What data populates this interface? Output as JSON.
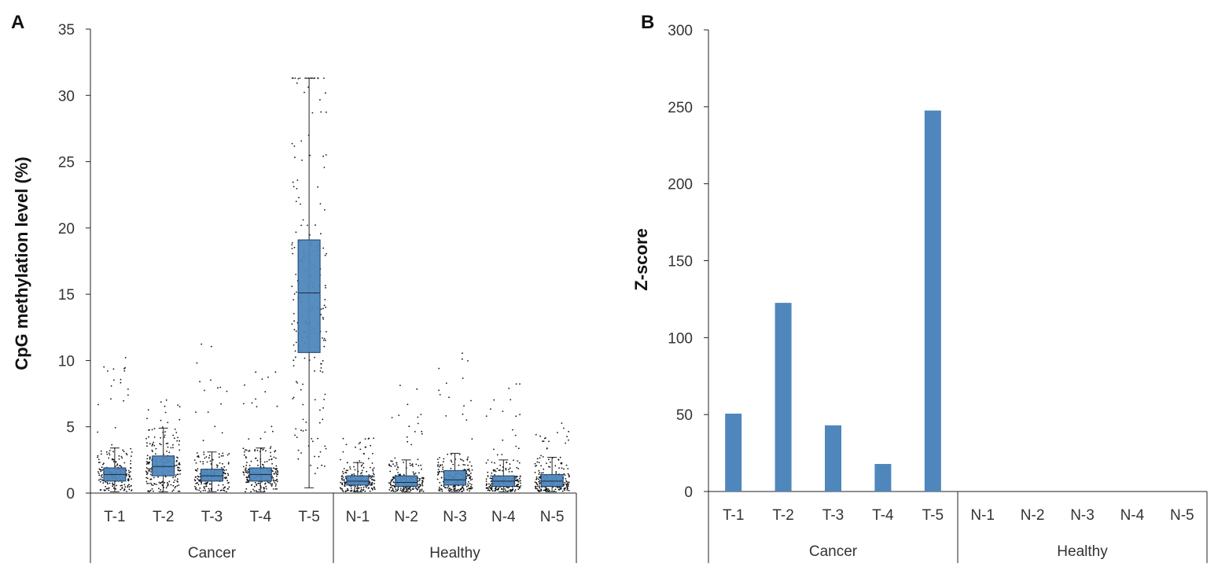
{
  "colors": {
    "bar": "#4f87bd",
    "box": "#4f87bd",
    "axis": "#222222",
    "point": "#111111"
  },
  "chart_data": [
    {
      "panel": "A",
      "type": "box",
      "title": "",
      "xlabel": "",
      "ylabel": "CpG methylation level (%)",
      "ylim": [
        0,
        35
      ],
      "yticks": [
        "0",
        "5",
        "10",
        "15",
        "20",
        "25",
        "30",
        "35"
      ],
      "categories": [
        "T-1",
        "T-2",
        "T-3",
        "T-4",
        "T-5",
        "N-1",
        "N-2",
        "N-3",
        "N-4",
        "N-5"
      ],
      "groups": [
        {
          "name": "Cancer",
          "categories": [
            "T-1",
            "T-2",
            "T-3",
            "T-4",
            "T-5"
          ]
        },
        {
          "name": "Healthy",
          "categories": [
            "N-1",
            "N-2",
            "N-3",
            "N-4",
            "N-5"
          ]
        }
      ],
      "boxes": [
        {
          "name": "T-1",
          "min": 0.1,
          "q1": 0.9,
          "median": 1.4,
          "q3": 1.9,
          "max": 3.4,
          "outlier_max": 11.0
        },
        {
          "name": "T-2",
          "min": 0.1,
          "q1": 1.3,
          "median": 2.0,
          "q3": 2.8,
          "max": 4.9,
          "outlier_max": 7.1
        },
        {
          "name": "T-3",
          "min": 0.1,
          "q1": 0.9,
          "median": 1.3,
          "q3": 1.8,
          "max": 3.1,
          "outlier_max": 11.7
        },
        {
          "name": "T-4",
          "min": 0.1,
          "q1": 0.9,
          "median": 1.4,
          "q3": 1.9,
          "max": 3.4,
          "outlier_max": 9.7
        },
        {
          "name": "T-5",
          "min": 0.4,
          "q1": 10.6,
          "median": 15.1,
          "q3": 19.1,
          "max": 31.3,
          "outlier_max": 31.3
        },
        {
          "name": "N-1",
          "min": 0.1,
          "q1": 0.6,
          "median": 0.9,
          "q3": 1.3,
          "max": 2.3,
          "outlier_max": 4.5
        },
        {
          "name": "N-2",
          "min": 0.1,
          "q1": 0.5,
          "median": 0.8,
          "q3": 1.3,
          "max": 2.5,
          "outlier_max": 8.2
        },
        {
          "name": "N-3",
          "min": 0.1,
          "q1": 0.6,
          "median": 1.0,
          "q3": 1.7,
          "max": 3.0,
          "outlier_max": 10.9
        },
        {
          "name": "N-4",
          "min": 0.1,
          "q1": 0.5,
          "median": 0.9,
          "q3": 1.3,
          "max": 2.5,
          "outlier_max": 10.0
        },
        {
          "name": "N-5",
          "min": 0.1,
          "q1": 0.5,
          "median": 0.9,
          "q3": 1.4,
          "max": 2.7,
          "outlier_max": 5.4
        }
      ]
    },
    {
      "panel": "B",
      "type": "bar",
      "title": "",
      "xlabel": "",
      "ylabel": "Z-score",
      "ylim": [
        0,
        300
      ],
      "yticks": [
        "0",
        "50",
        "100",
        "150",
        "200",
        "250",
        "300"
      ],
      "categories": [
        "T-1",
        "T-2",
        "T-3",
        "T-4",
        "T-5",
        "N-1",
        "N-2",
        "N-3",
        "N-4",
        "N-5"
      ],
      "values": [
        50.6,
        122.6,
        43.0,
        17.9,
        247.6,
        0,
        0,
        0,
        0,
        0
      ],
      "groups": [
        {
          "name": "Cancer",
          "categories": [
            "T-1",
            "T-2",
            "T-3",
            "T-4",
            "T-5"
          ]
        },
        {
          "name": "Healthy",
          "categories": [
            "N-1",
            "N-2",
            "N-3",
            "N-4",
            "N-5"
          ]
        }
      ]
    }
  ]
}
